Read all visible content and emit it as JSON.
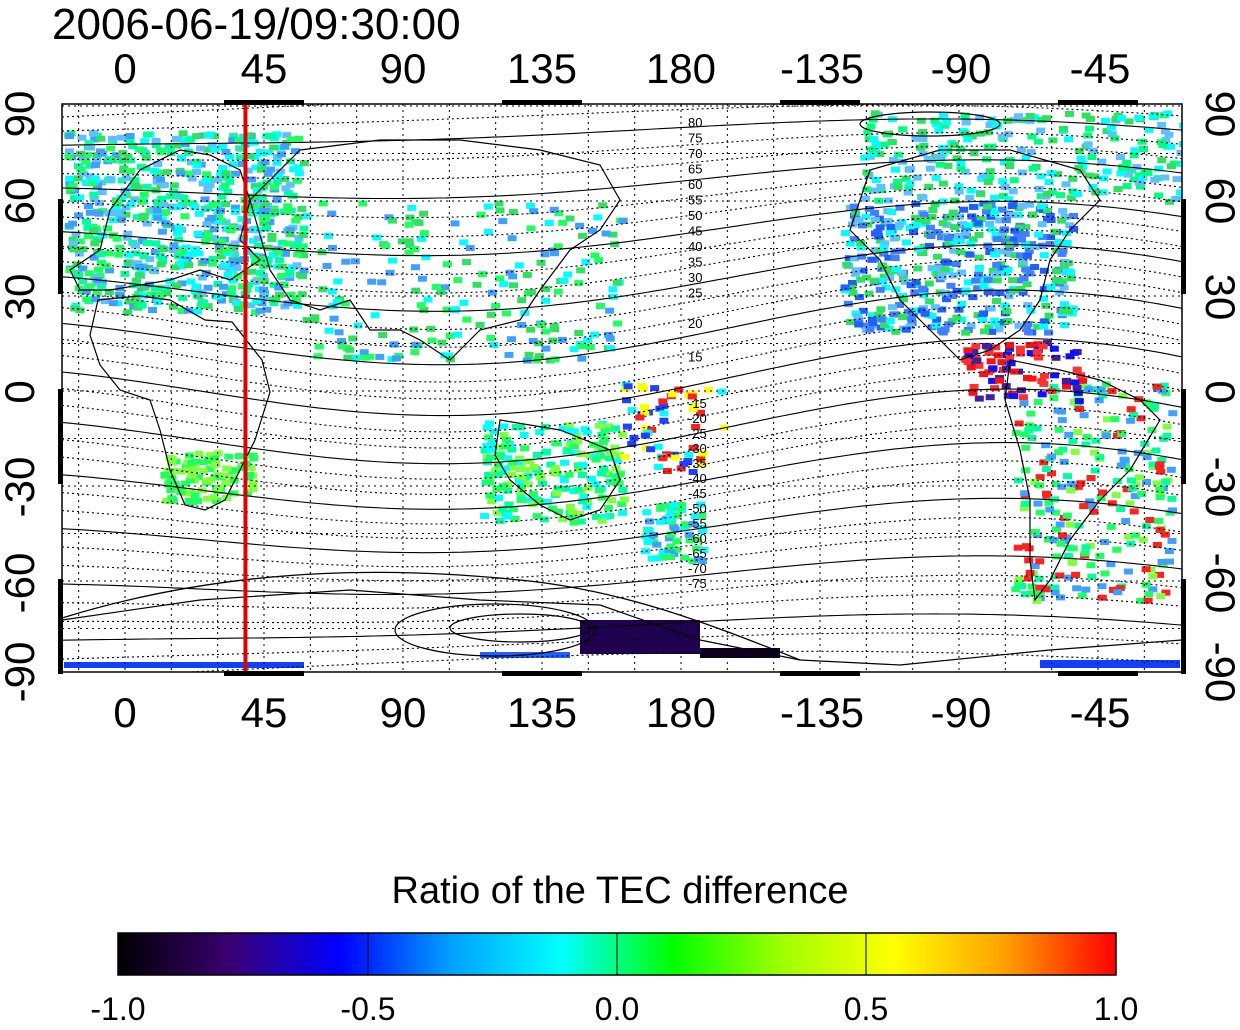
{
  "header": {
    "timestamp": "2006-06-19/09:30:00"
  },
  "map": {
    "lon_ticks": [
      "0",
      "45",
      "90",
      "135",
      "180",
      "-135",
      "-90",
      "-45"
    ],
    "lat_ticks_left": [
      "90",
      "60",
      "30",
      "0",
      "-30",
      "-60",
      "-90"
    ],
    "lat_ticks_right": [
      "90",
      "60",
      "30",
      "0",
      "-30",
      "-60",
      "-90"
    ],
    "red_meridian_lon": 39,
    "contour_labels_north": [
      "80",
      "75",
      "70",
      "65",
      "60",
      "55",
      "50",
      "45",
      "40",
      "35",
      "30",
      "25",
      "20",
      "15"
    ],
    "contour_labels_south": [
      "-15",
      "-20",
      "-25",
      "-30",
      "-35",
      "-40",
      "-45",
      "-50",
      "-55",
      "-60",
      "-65",
      "-70",
      "-75"
    ],
    "colors": {
      "meridian": "#e00000"
    }
  },
  "colorbar": {
    "title": "Ratio of the TEC difference",
    "tick_labels": [
      "-1.0",
      "-0.5",
      "0.0",
      "0.5",
      "1.0"
    ],
    "range": [
      -1.0,
      1.0
    ],
    "stops": [
      "#000000",
      "#3a0070",
      "#0000ff",
      "#00a0ff",
      "#00ffff",
      "#00ff00",
      "#a0ff00",
      "#ffff00",
      "#ffa000",
      "#ff0000"
    ]
  }
}
